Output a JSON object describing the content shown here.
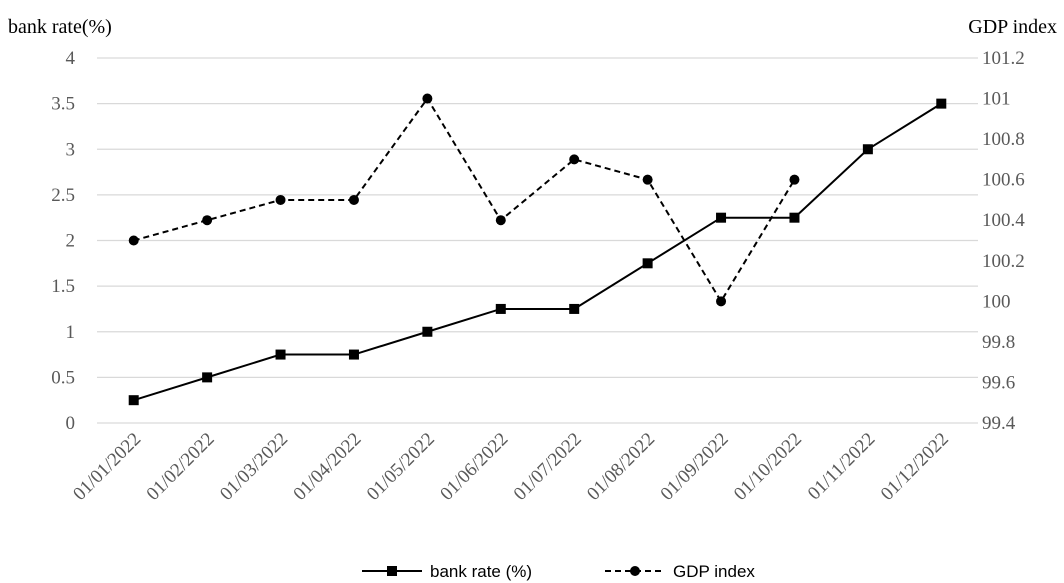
{
  "chart_data": {
    "type": "line",
    "categories": [
      "01/01/2022",
      "01/02/2022",
      "01/03/2022",
      "01/04/2022",
      "01/05/2022",
      "01/06/2022",
      "01/07/2022",
      "01/08/2022",
      "01/09/2022",
      "01/10/2022",
      "01/11/2022",
      "01/12/2022"
    ],
    "y_left": {
      "label": "bank rate(%)",
      "range": [
        0,
        4
      ],
      "ticks": [
        "0",
        "0.5",
        "1",
        "1.5",
        "2",
        "2.5",
        "3",
        "3.5",
        "4"
      ]
    },
    "y_right": {
      "label": "GDP index",
      "range": [
        99.4,
        101.2
      ],
      "ticks": [
        "99.4",
        "99.6",
        "99.8",
        "100",
        "100.2",
        "100.4",
        "100.6",
        "100.8",
        "101",
        "101.2"
      ]
    },
    "series": [
      {
        "name": "bank rate (%)",
        "axis": "left",
        "line_style": "solid",
        "marker": "square",
        "color": "#000000",
        "values": [
          0.25,
          0.5,
          0.75,
          0.75,
          1.0,
          1.25,
          1.25,
          1.75,
          2.25,
          2.25,
          3.0,
          3.5
        ]
      },
      {
        "name": "GDP index",
        "axis": "right",
        "line_style": "dashed",
        "marker": "circle",
        "color": "#000000",
        "values": [
          100.3,
          100.4,
          100.5,
          100.5,
          101.0,
          100.4,
          100.7,
          100.6,
          100.0,
          100.6,
          null,
          null
        ]
      }
    ],
    "grid": true,
    "gridline_color": "#d9d9d9",
    "legend_position": "bottom"
  }
}
